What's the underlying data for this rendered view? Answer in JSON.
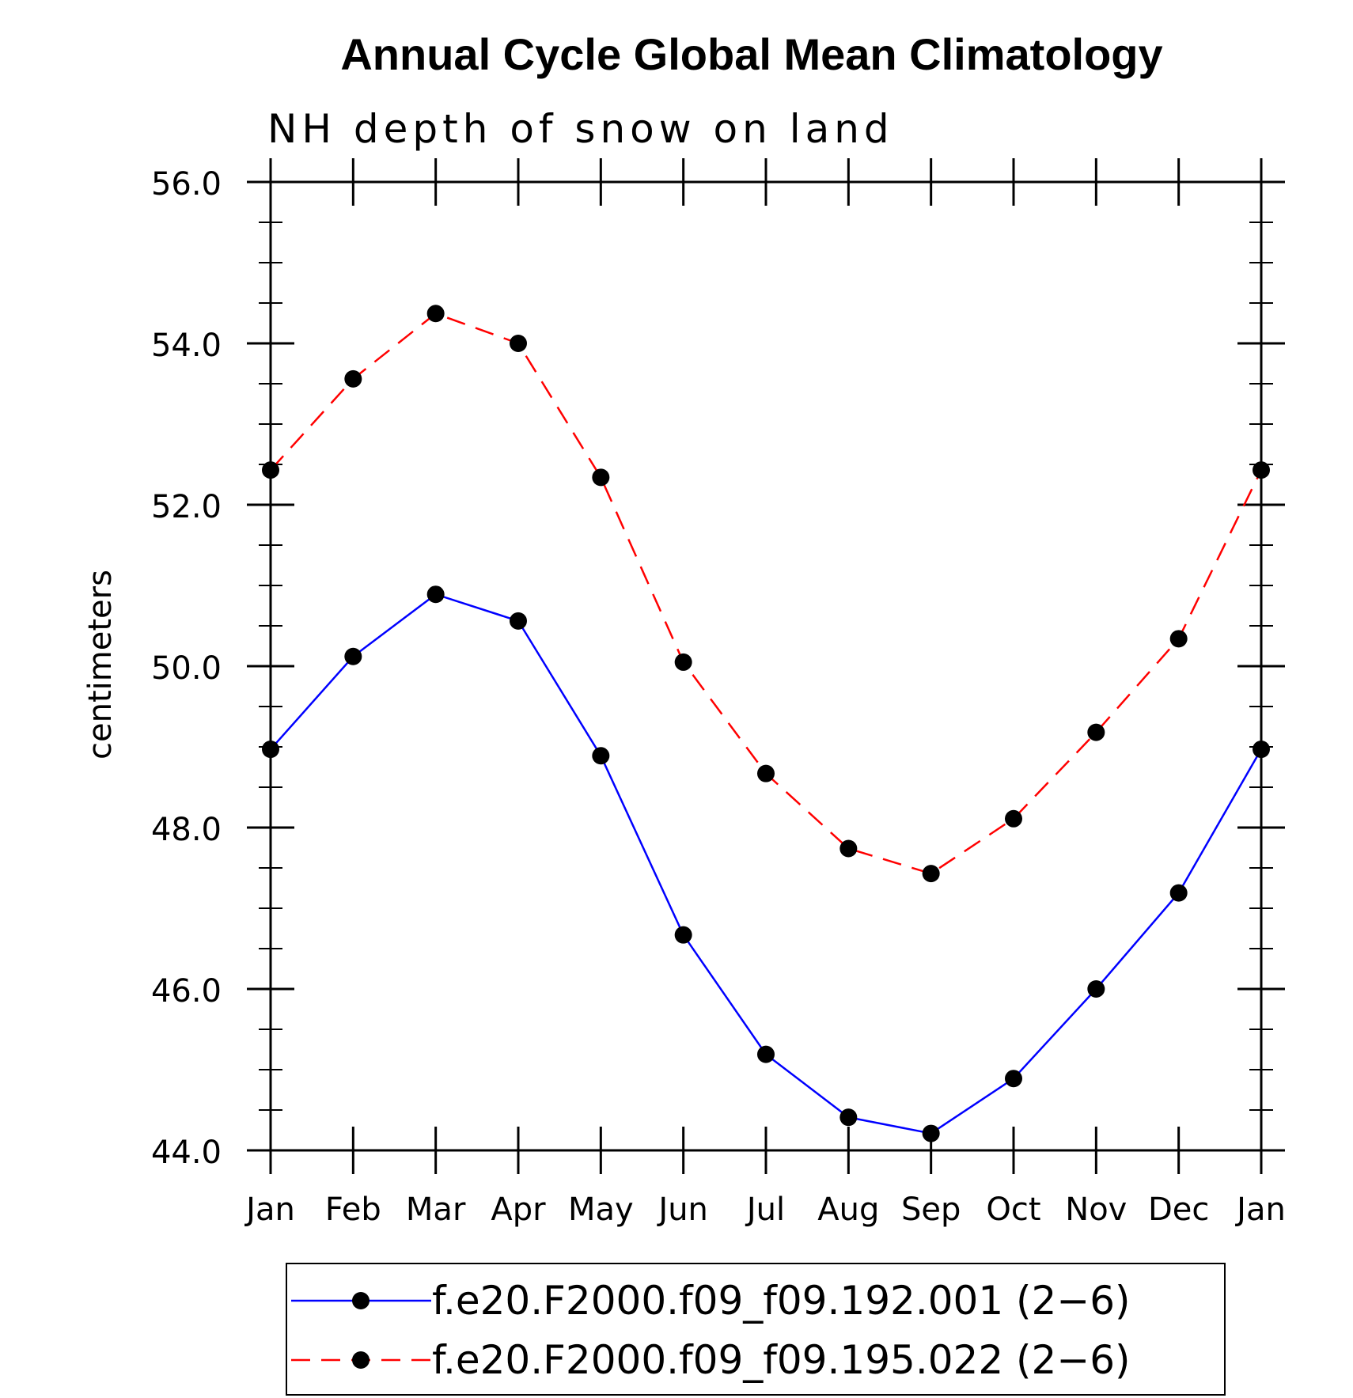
{
  "chart_data": {
    "type": "line",
    "title": "Annual Cycle Global Mean Climatology",
    "subtitle": "NH depth of snow on land",
    "ylabel": "centimeters",
    "xlabel": "",
    "categories": [
      "Jan",
      "Feb",
      "Mar",
      "Apr",
      "May",
      "Jun",
      "Jul",
      "Aug",
      "Sep",
      "Oct",
      "Nov",
      "Dec",
      "Jan"
    ],
    "ylim": [
      44.0,
      56.0
    ],
    "yticks": [
      "44.0",
      "46.0",
      "48.0",
      "50.0",
      "52.0",
      "54.0",
      "56.0"
    ],
    "grid": false,
    "legend_position": "bottom",
    "series": [
      {
        "name": "f.e20.F2000.f09_f09.192.001 (2−6)",
        "color": "#0000ff",
        "dash": "solid",
        "marker": "filled-circle",
        "values": [
          48.97,
          50.12,
          50.89,
          50.56,
          48.89,
          46.67,
          45.19,
          44.41,
          44.21,
          44.89,
          46.0,
          47.19,
          48.97
        ]
      },
      {
        "name": "f.e20.F2000.f09_f09.195.022 (2−6)",
        "color": "#ff0000",
        "dash": "dashed",
        "marker": "filled-circle",
        "values": [
          52.43,
          53.56,
          54.37,
          54.0,
          52.34,
          50.05,
          48.67,
          47.74,
          47.43,
          48.11,
          49.18,
          50.34,
          52.43
        ]
      }
    ]
  }
}
